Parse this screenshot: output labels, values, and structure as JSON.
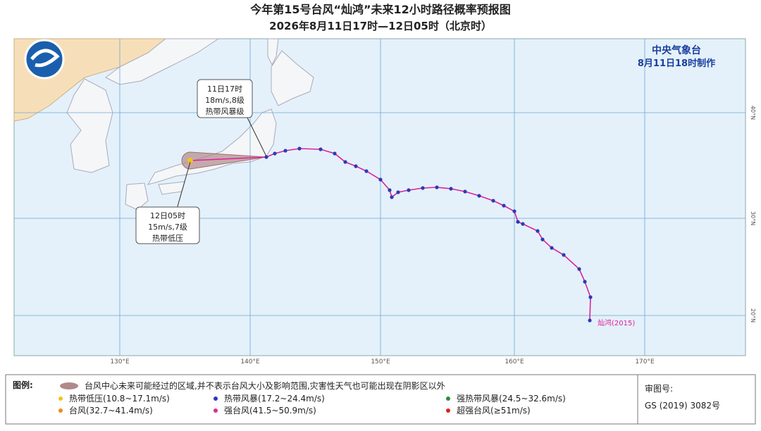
{
  "header": {
    "title": "今年第15号台风“灿鸿”未来12小时路径概率预报图",
    "subtitle": "2026年8月11日17时—12日05时（北京时）"
  },
  "agency": {
    "name": "中央气象台",
    "issued": "8月11日18时制作"
  },
  "callouts": [
    {
      "lines": [
        "11日17时",
        "18m/s,8级",
        "热带风暴级"
      ]
    },
    {
      "lines": [
        "12日05时",
        "15m/s,7级",
        "热带低压"
      ]
    }
  ],
  "track": {
    "label": "灿鸿(2015)"
  },
  "map": {
    "lon_labels": [
      "130°E",
      "140°E",
      "150°E",
      "160°E",
      "170°E"
    ],
    "lat_labels": [
      "40°N",
      "30°N",
      "20°N"
    ]
  },
  "legend": {
    "title": "图例:",
    "cone": "台风中心未来可能经过的区域,并不表示台风大小及影响范围,灾害性天气也可能出现在阴影区以外",
    "items": [
      {
        "label": "热带低压(10.8~17.1m/s)",
        "color": "#f2c21b"
      },
      {
        "label": "热带风暴(17.2~24.4m/s)",
        "color": "#2a3bb5"
      },
      {
        "label": "强热带风暴(24.5~32.6m/s)",
        "color": "#2e8b3e"
      },
      {
        "label": "台风(32.7~41.4m/s)",
        "color": "#f08a1c"
      },
      {
        "label": "强台风(41.5~50.9m/s)",
        "color": "#d6308a"
      },
      {
        "label": "超强台风(≥51m/s)",
        "color": "#e02020"
      }
    ]
  },
  "review": {
    "label": "审图号:",
    "number": "GS (2019) 3082号"
  }
}
